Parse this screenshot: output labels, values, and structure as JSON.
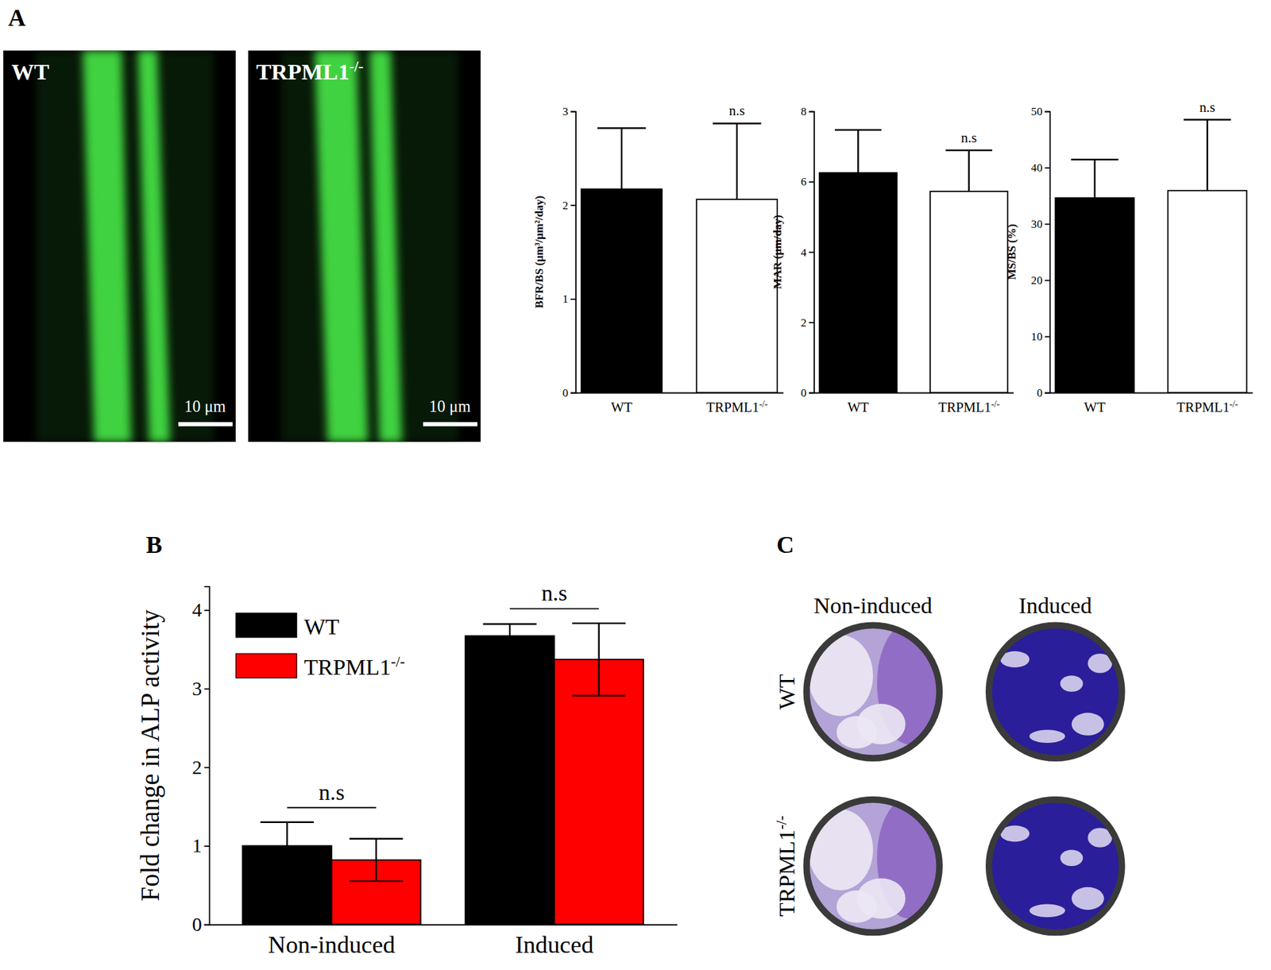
{
  "panel_labels": [
    "A",
    "B",
    "C"
  ],
  "micrographs": [
    {
      "label": "WT",
      "scale_bar": "10 μm"
    },
    {
      "label": "TRPML1-/-",
      "scale_bar": "10 μm"
    }
  ],
  "wells": {
    "columns": [
      "Non-induced",
      "Induced"
    ],
    "rows": [
      "WT",
      "TRPML1-/-"
    ]
  },
  "chart_data": [
    {
      "type": "bar",
      "y_label": "BFR/BS (μm³/μm²/day)",
      "categories": [
        "WT",
        "TRPML1-/-"
      ],
      "series": [
        {
          "colors": [
            "#000000",
            "#ffffff"
          ],
          "values": [
            2.17,
            2.06
          ],
          "errors": [
            0.65,
            0.81
          ]
        }
      ],
      "annotations": [
        null,
        "n.s"
      ],
      "ylim": [
        0,
        3
      ],
      "yticks": [
        0,
        1,
        2,
        3
      ]
    },
    {
      "type": "bar",
      "y_label": "MAR (μm/day)",
      "categories": [
        "WT",
        "TRPML1-/-"
      ],
      "series": [
        {
          "colors": [
            "#000000",
            "#ffffff"
          ],
          "values": [
            6.25,
            5.72
          ],
          "errors": [
            1.22,
            1.17
          ]
        }
      ],
      "annotations": [
        null,
        "n.s"
      ],
      "ylim": [
        0,
        8
      ],
      "yticks": [
        0,
        2,
        4,
        6,
        8
      ]
    },
    {
      "type": "bar",
      "y_label": "MS/BS (%)",
      "categories": [
        "WT",
        "TRPML1-/-"
      ],
      "series": [
        {
          "colors": [
            "#000000",
            "#ffffff"
          ],
          "values": [
            34.6,
            35.9
          ],
          "errors": [
            6.8,
            12.6
          ]
        }
      ],
      "annotations": [
        null,
        "n.s"
      ],
      "ylim": [
        0,
        50
      ],
      "yticks": [
        0,
        10,
        20,
        30,
        40,
        50
      ]
    },
    {
      "type": "bar",
      "y_label": "Fold change in ALP activity",
      "categories": [
        "Non-induced",
        "Induced"
      ],
      "series": [
        {
          "name": "WT",
          "color": "#000000",
          "values": [
            1.0,
            3.67
          ],
          "errors": [
            0.3,
            0.15
          ]
        },
        {
          "name": "TRPML1-/-",
          "color": "#ff0000",
          "values": [
            0.82,
            3.37
          ],
          "errors": [
            0.27,
            0.46
          ]
        }
      ],
      "annotations": [
        "n.s",
        "n.s"
      ],
      "legend": "upper left",
      "ylim": [
        0,
        4.3
      ],
      "yticks": [
        0,
        1,
        2,
        3,
        4
      ]
    }
  ]
}
